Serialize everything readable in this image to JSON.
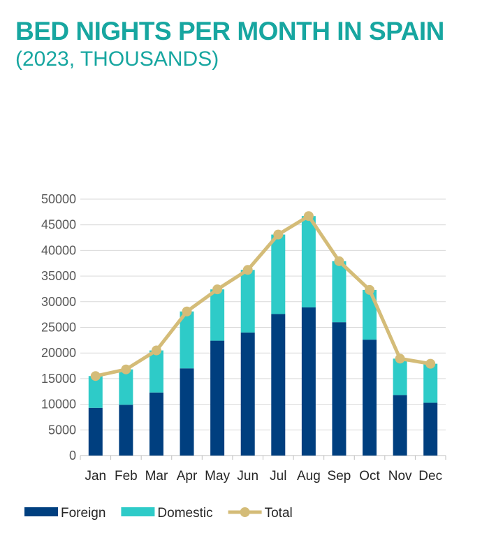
{
  "chart_data": {
    "type": "bar",
    "stacked": true,
    "title": "BED NIGHTS PER MONTH IN SPAIN",
    "subtitle": "(2023, THOUSANDS)",
    "xlabel": "",
    "ylabel": "",
    "ylim": [
      0,
      50000
    ],
    "yticks": [
      0,
      5000,
      10000,
      15000,
      20000,
      25000,
      30000,
      35000,
      40000,
      45000,
      50000
    ],
    "grid": true,
    "legend_position": "bottom",
    "categories": [
      "Jan",
      "Feb",
      "Mar",
      "Apr",
      "May",
      "Jun",
      "Jul",
      "Aug",
      "Sep",
      "Oct",
      "Nov",
      "Dec"
    ],
    "series": [
      {
        "name": "Foreign",
        "type": "bar",
        "color": "#003f7f",
        "values": [
          9300,
          9900,
          12300,
          17000,
          22400,
          24000,
          27600,
          28900,
          26000,
          22600,
          11800,
          10300
        ]
      },
      {
        "name": "Domestic",
        "type": "bar",
        "color": "#2ecbc8",
        "values": [
          6200,
          6900,
          8200,
          11100,
          10000,
          12200,
          15500,
          17800,
          11900,
          9700,
          7100,
          7600
        ]
      },
      {
        "name": "Total",
        "type": "line",
        "color": "#d4bc78",
        "values": [
          15500,
          16800,
          20500,
          28100,
          32400,
          36200,
          43100,
          46700,
          37900,
          32300,
          18900,
          17900
        ]
      }
    ]
  }
}
